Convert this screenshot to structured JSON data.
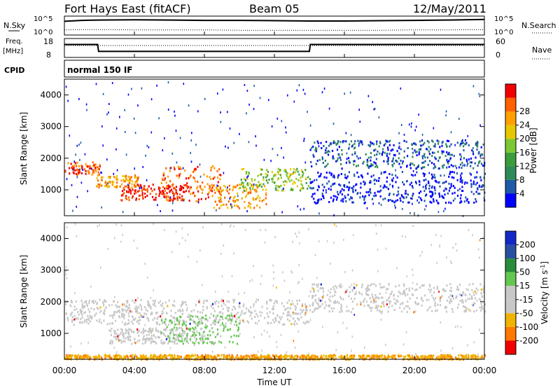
{
  "header": {
    "station": "Fort Hays East (fitACF)",
    "beam": "Beam 05",
    "date": "12/May/2011"
  },
  "top_panels": {
    "nsky_label": "N.Sky",
    "nsky_ticks": [
      "10^5",
      "10^0"
    ],
    "nsearch_label": "N.Search",
    "nsearch_ticks": [
      "10^5",
      "10^0"
    ],
    "freq_label_line1": "Freq.",
    "freq_label_line2": "[MHz]",
    "freq_ticks": [
      "18",
      "8"
    ],
    "nave_label": "Nave",
    "nave_ticks": [
      "60",
      "0"
    ],
    "cpid_label": "CPID",
    "cpid_value": "normal 150 IF"
  },
  "x_axis": {
    "label": "Time UT",
    "ticks": [
      "00:00",
      "04:00",
      "08:00",
      "12:00",
      "16:00",
      "20:00",
      "00:00"
    ]
  },
  "chart_data": [
    {
      "type": "line",
      "title": "N.Sky / N.Search",
      "x": [
        0,
        1,
        2,
        4,
        6,
        8,
        10,
        12,
        14,
        16,
        18,
        20,
        22,
        24
      ],
      "series": [
        {
          "name": "N.Sky",
          "values": [
            4,
            4.3,
            4.4,
            4.5,
            4.4,
            4.3,
            4.3,
            4.2,
            4.1,
            4.1,
            4.2,
            4.3,
            4.4,
            4.6
          ]
        },
        {
          "name": "N.Search",
          "values": [
            1.2,
            1.3,
            1.3,
            1.2,
            1.2,
            1.2,
            1.1,
            1.1,
            1.1,
            1.1,
            1.1,
            1.2,
            1.2,
            1.3
          ]
        }
      ]
    },
    {
      "type": "line",
      "title": "Freq. / Nave",
      "x": [
        0,
        1.9,
        1.95,
        14.0,
        14.05,
        24
      ],
      "series": [
        {
          "name": "Freq.",
          "values": [
            15.5,
            15.5,
            11,
            11,
            15.5,
            15.5
          ]
        },
        {
          "name": "Nave",
          "values": [
            41,
            41,
            41,
            41,
            41,
            41
          ]
        }
      ]
    },
    {
      "type": "heatmap",
      "title": "Power",
      "colorbar_label": "Power [dB]",
      "colorbar_ticks": [
        "4",
        "8",
        "12",
        "16",
        "20",
        "24",
        "28"
      ],
      "colorbar_colors": [
        "#0000ff",
        "#1e5aa8",
        "#2e8b57",
        "#3c9c3c",
        "#7cc832",
        "#e6c800",
        "#ffa000",
        "#ff6000",
        "#f00000"
      ],
      "xlabel": "Time UT",
      "ylabel": "Slant Range [km]",
      "yticks": [
        "1000",
        "2000",
        "3000",
        "4000"
      ],
      "ylim": [
        180,
        4500
      ],
      "xlim": [
        0,
        24
      ],
      "features": [
        {
          "t0": 0.0,
          "t1": 2.0,
          "r0": 1500,
          "r1": 1900,
          "level": 7
        },
        {
          "t0": 1.8,
          "t1": 4.2,
          "r0": 1100,
          "r1": 1500,
          "level": 6
        },
        {
          "t0": 3.2,
          "t1": 7.0,
          "r0": 700,
          "r1": 1200,
          "level": 8
        },
        {
          "t0": 5.5,
          "t1": 9.0,
          "r0": 650,
          "r1": 1800,
          "level": 7
        },
        {
          "t0": 8.5,
          "t1": 11.5,
          "r0": 450,
          "r1": 1200,
          "level": 6
        },
        {
          "t0": 10.0,
          "t1": 14.0,
          "r0": 1000,
          "r1": 1700,
          "level": 4
        },
        {
          "t0": 14.0,
          "t1": 24.0,
          "r0": 1700,
          "r1": 2600,
          "level": 1
        },
        {
          "t0": 14.0,
          "t1": 24.0,
          "r0": 600,
          "r1": 1600,
          "level": 0
        }
      ]
    },
    {
      "type": "heatmap",
      "title": "Velocity",
      "colorbar_label": "Velocity [m s-1]",
      "colorbar_ticks": [
        "200",
        "100",
        "50",
        "15",
        "-15",
        "-50",
        "-100",
        "-200"
      ],
      "colorbar_colors": [
        "#1428c8",
        "#2850a0",
        "#288c3c",
        "#64c850",
        "#c8c8c8",
        "#c8c8c8",
        "#f0b400",
        "#ff7800",
        "#f00000"
      ],
      "xlabel": "Time UT",
      "ylabel": "Slant Range [km]",
      "yticks": [
        "1000",
        "2000",
        "3000",
        "4000"
      ],
      "ylim": [
        180,
        4500
      ],
      "xlim": [
        0,
        24
      ],
      "features": [
        {
          "t0": 0.0,
          "t1": 14.0,
          "r0": 1300,
          "r1": 2100,
          "vel": 0
        },
        {
          "t0": 2.5,
          "t1": 8.0,
          "r0": 700,
          "r1": 1200,
          "vel": 0
        },
        {
          "t0": 5.5,
          "t1": 10.0,
          "r0": 700,
          "r1": 1600,
          "vel": 30
        },
        {
          "t0": 14.0,
          "t1": 24.0,
          "r0": 1700,
          "r1": 2600,
          "vel": 0
        },
        {
          "t0": 0.0,
          "t1": 24.0,
          "r0": 200,
          "r1": 350,
          "vel": -40
        }
      ]
    }
  ]
}
